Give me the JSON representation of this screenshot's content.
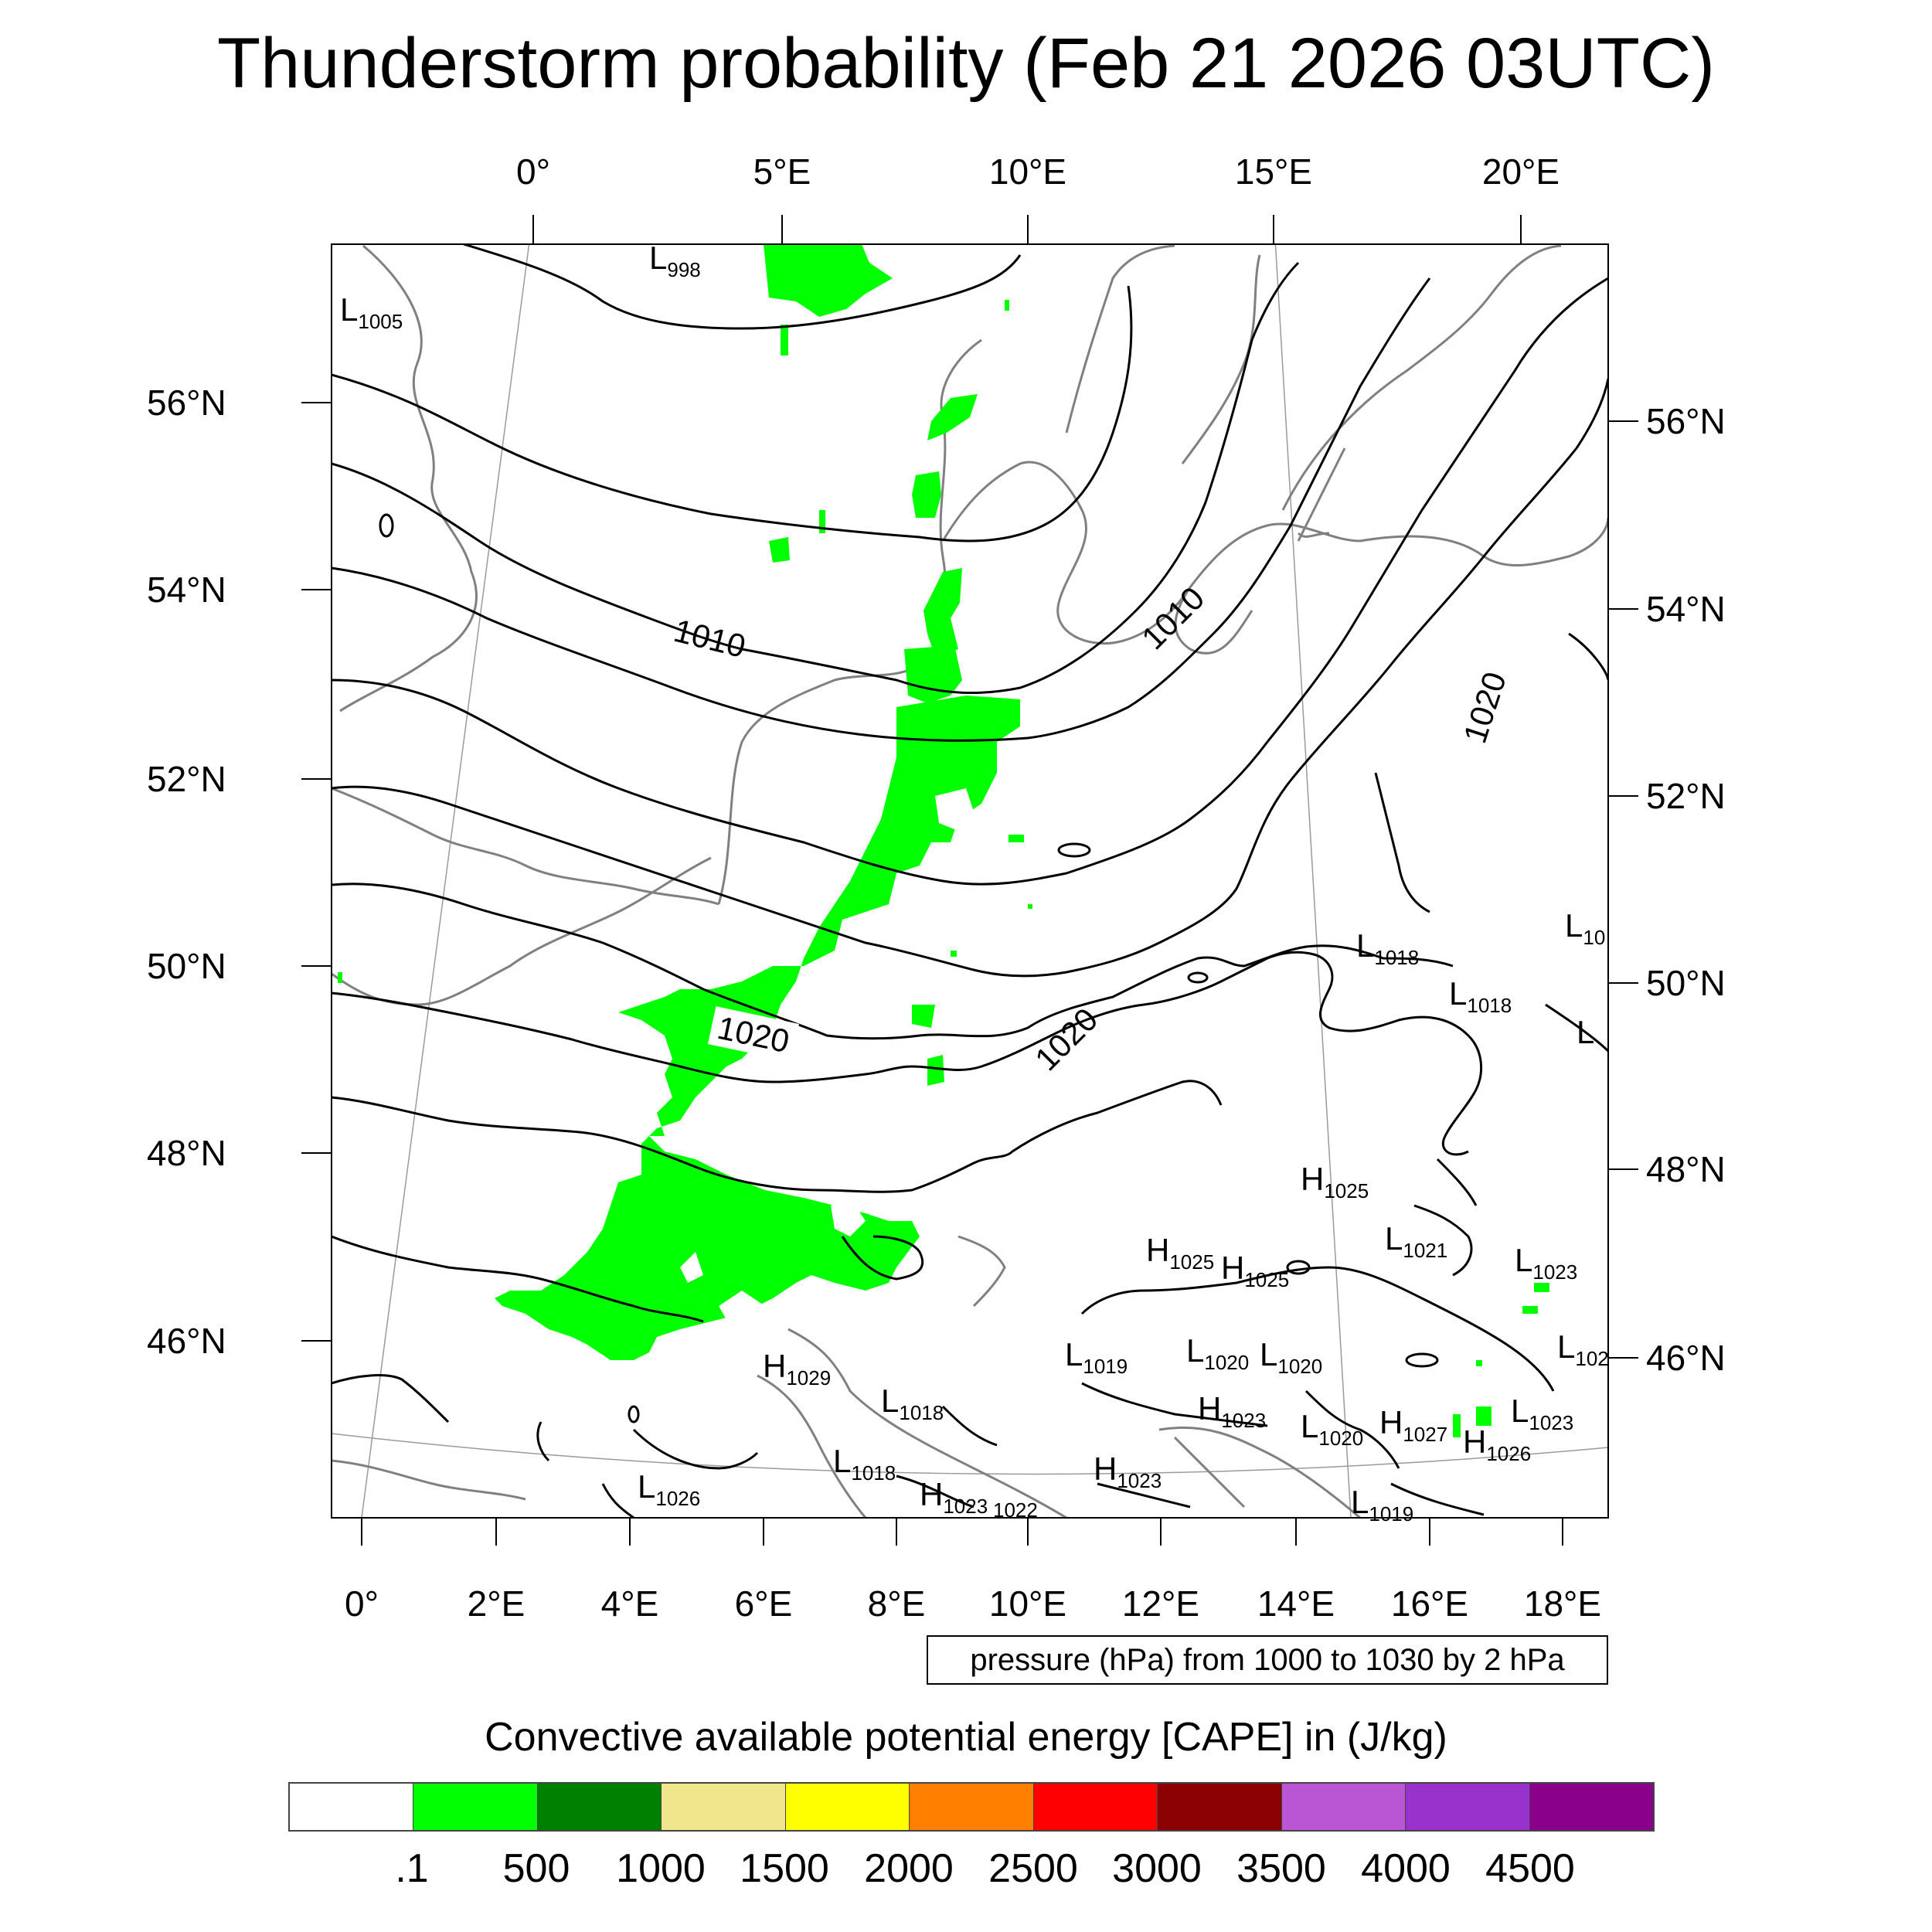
{
  "title": "Thunderstorm probability (Feb 21 2026 03UTC)",
  "axes": {
    "top_lon": [
      "0°",
      "5°E",
      "10°E",
      "15°E",
      "20°E"
    ],
    "bottom_lon": [
      "0°",
      "2°E",
      "4°E",
      "6°E",
      "8°E",
      "10°E",
      "12°E",
      "14°E",
      "16°E",
      "18°E"
    ],
    "left_lat": [
      "56°N",
      "54°N",
      "52°N",
      "50°N",
      "48°N",
      "46°N"
    ],
    "right_lat": [
      "56°N",
      "54°N",
      "52°N",
      "50°N",
      "48°N",
      "46°N"
    ]
  },
  "pressure_centers": [
    {
      "type": "L",
      "value": "998"
    },
    {
      "type": "L",
      "value": "1005"
    },
    {
      "type": "L",
      "value": "1018"
    },
    {
      "type": "L",
      "value": "1018"
    },
    {
      "type": "L",
      "value": "10"
    },
    {
      "type": "L",
      "value": ""
    },
    {
      "type": "H",
      "value": "1025"
    },
    {
      "type": "H",
      "value": "1025"
    },
    {
      "type": "H",
      "value": "1025"
    },
    {
      "type": "L",
      "value": "1021"
    },
    {
      "type": "L",
      "value": "1023"
    },
    {
      "type": "L",
      "value": "102"
    },
    {
      "type": "H",
      "value": "1029"
    },
    {
      "type": "L",
      "value": "1019"
    },
    {
      "type": "L",
      "value": "1020"
    },
    {
      "type": "L",
      "value": "1020"
    },
    {
      "type": "L",
      "value": "1018"
    },
    {
      "type": "H",
      "value": "1023"
    },
    {
      "type": "L",
      "value": "1020"
    },
    {
      "type": "H",
      "value": "1027"
    },
    {
      "type": "L",
      "value": "1023"
    },
    {
      "type": "H",
      "value": "1026"
    },
    {
      "type": "L",
      "value": "1018"
    },
    {
      "type": "H",
      "value": "1023"
    },
    {
      "type": "L",
      "value": "1026"
    },
    {
      "type": "H",
      "value": "1023"
    },
    {
      "type": "L",
      "value": "1019"
    }
  ],
  "contour_labels": [
    "1010",
    "1010",
    "1020",
    "1020",
    "1020"
  ],
  "extra_labels": [
    "1022"
  ],
  "pressure_note": "pressure (hPa) from 1000 to 1030 by 2 hPa",
  "colorbar": {
    "title": "Convective available potential energy [CAPE] in (J/kg)",
    "colors": [
      "#ffffff",
      "#00ff00",
      "#008000",
      "#f0e68c",
      "#ffff00",
      "#ff8000",
      "#ff0000",
      "#8b0000",
      "#ba55d3",
      "#9932cc",
      "#8b008b"
    ],
    "labels": [
      ".1",
      "500",
      "1000",
      "1500",
      "2000",
      "2500",
      "3000",
      "3500",
      "4000",
      "4500"
    ]
  },
  "colors": {
    "cape_fill": "#00ff00",
    "isobar": "#000000",
    "coast": "#808080"
  }
}
